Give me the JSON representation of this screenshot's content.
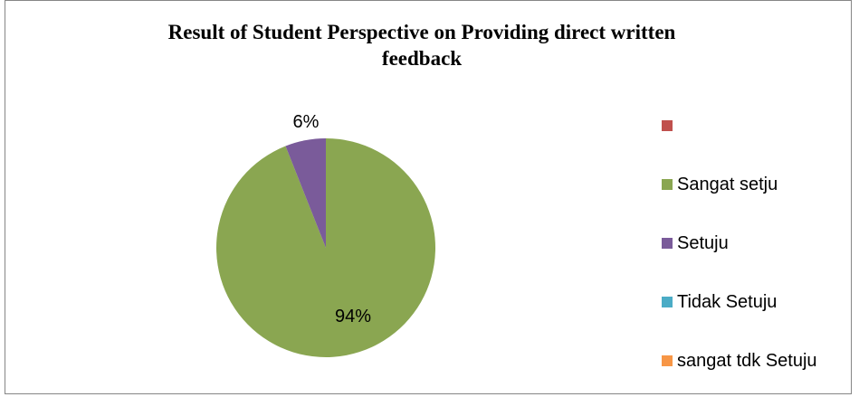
{
  "chart_data": {
    "type": "pie",
    "title_line1": "Result of Student Perspective on Providing direct written",
    "title_line2": "feedback",
    "categories": [
      "",
      "Sangat setju",
      "Setuju",
      "Tidak Setuju",
      "sangat tdk Setuju"
    ],
    "values": [
      0,
      94,
      6,
      0,
      0
    ],
    "data_labels": [
      "",
      "94%",
      "6%",
      "",
      ""
    ],
    "colors": [
      "#c0504d",
      "#8aa651",
      "#7a5b9a",
      "#4bacc6",
      "#f79646"
    ],
    "legend_position": "right"
  }
}
